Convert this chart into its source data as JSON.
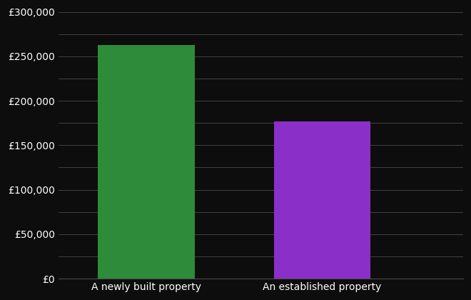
{
  "categories": [
    "A newly built property",
    "An established property"
  ],
  "values": [
    263000,
    177000
  ],
  "bar_colors": [
    "#2e8b3a",
    "#8b2fc9"
  ],
  "background_color": "#0d0d0d",
  "text_color": "#ffffff",
  "grid_color": "#4a4a4a",
  "ylim": [
    0,
    300000
  ],
  "ytick_step": 25000,
  "ytick_label_step": 50000,
  "bar_width": 0.55,
  "tick_label_fontsize": 10,
  "xlabel_fontsize": 10
}
